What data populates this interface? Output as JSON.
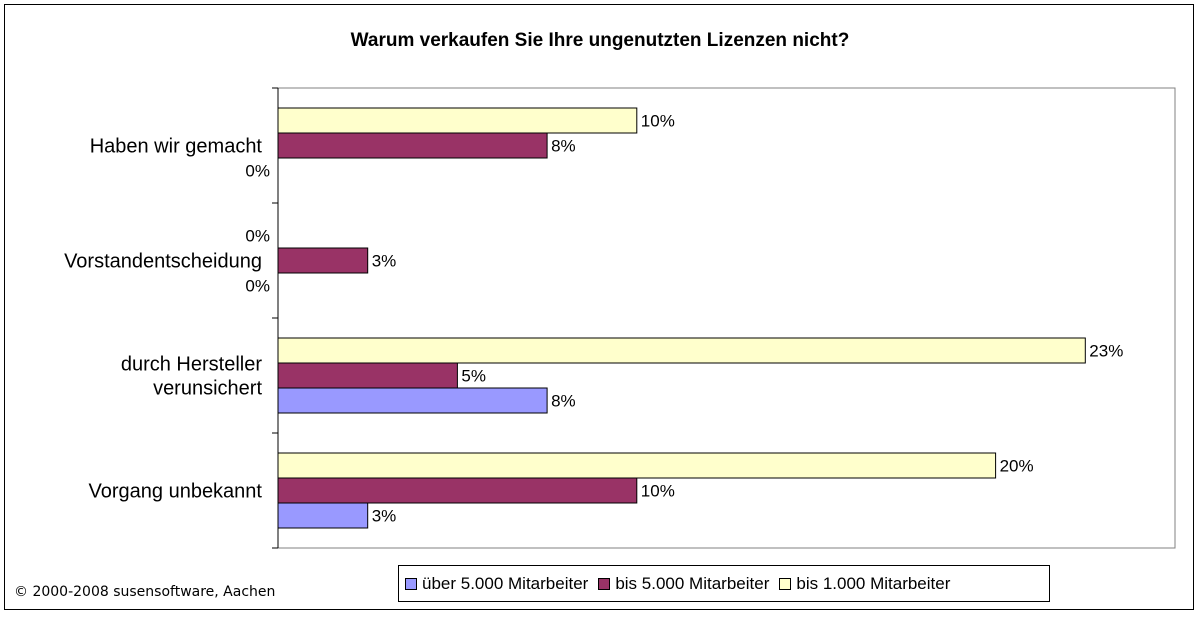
{
  "chart_data": {
    "type": "bar",
    "orientation": "horizontal",
    "title": "Warum verkaufen Sie Ihre ungenutzten Lizenzen nicht?",
    "categories": [
      [
        "Haben wir gemacht"
      ],
      [
        "Vorstandentscheidung"
      ],
      [
        "durch Hersteller",
        "verunsichert"
      ],
      [
        "Vorgang unbekannt"
      ]
    ],
    "series": [
      {
        "name": "bis 1.000 Mitarbeiter",
        "color": "#FFFFCC",
        "values": [
          10,
          0,
          22.5,
          20
        ],
        "labels": [
          "10%",
          "0%",
          "23%",
          "20%"
        ]
      },
      {
        "name": "bis 5.000 Mitarbeiter",
        "color": "#993366",
        "values": [
          7.5,
          2.5,
          5,
          10
        ],
        "labels": [
          "8%",
          "3%",
          "5%",
          "10%"
        ]
      },
      {
        "name": "über 5.000 Mitarbeiter",
        "color": "#9999FF",
        "values": [
          0,
          0,
          7.5,
          2.5
        ],
        "labels": [
          "0%",
          "0%",
          "8%",
          "3%"
        ]
      }
    ],
    "legend_order": [
      "über 5.000 Mitarbeiter",
      "bis 5.000 Mitarbeiter",
      "bis 1.000 Mitarbeiter"
    ],
    "xlim": [
      0,
      25
    ],
    "grid": false,
    "legend_position": "bottom"
  },
  "copyright": "© 2000-2008 susensoftware, Aachen"
}
